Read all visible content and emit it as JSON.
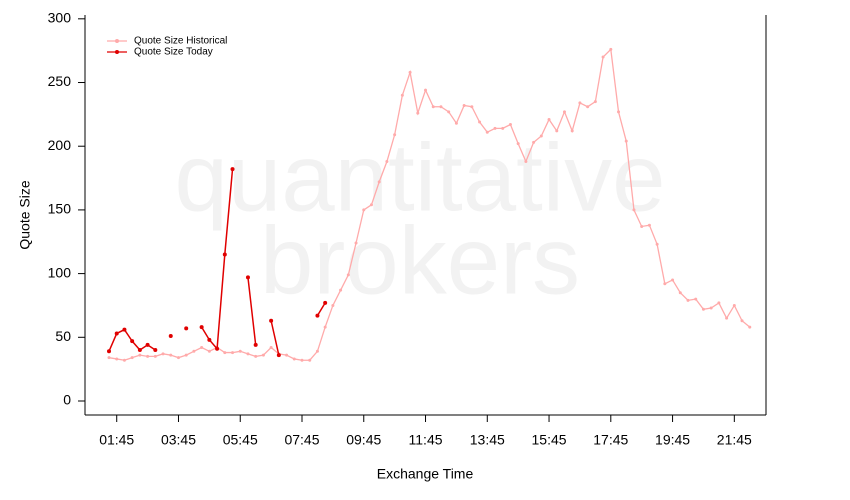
{
  "chart_data": {
    "type": "line",
    "watermark": [
      "quantitative",
      "brokers"
    ],
    "xlabel": "Exchange Time",
    "ylabel": "Quote Size",
    "categories": [
      null,
      "01:45",
      null,
      null,
      null,
      null,
      null,
      null,
      null,
      "03:45",
      null,
      null,
      null,
      null,
      null,
      null,
      null,
      "05:45",
      null,
      null,
      null,
      null,
      null,
      null,
      null,
      "07:45",
      null,
      null,
      null,
      null,
      null,
      null,
      null,
      "09:45",
      null,
      null,
      null,
      null,
      null,
      null,
      null,
      "11:45",
      null,
      null,
      null,
      null,
      null,
      null,
      null,
      "13:45",
      null,
      null,
      null,
      null,
      null,
      null,
      null,
      "15:45",
      null,
      null,
      null,
      null,
      null,
      null,
      null,
      "17:45",
      null,
      null,
      null,
      null,
      null,
      null,
      null,
      "19:45",
      null,
      null,
      null,
      null,
      null,
      null,
      null,
      "21:45",
      null,
      null
    ],
    "series": [
      {
        "name": "Quote Size Historical",
        "color": "#ffaaaa",
        "values": [
          34,
          33,
          32,
          34,
          36,
          35,
          35,
          37,
          36,
          34,
          36,
          39,
          42,
          39,
          42,
          38,
          38,
          39,
          37,
          35,
          36,
          42,
          37,
          36,
          33,
          32,
          32,
          39,
          58,
          75,
          87,
          99,
          124,
          150,
          154,
          172,
          188,
          209,
          240,
          258,
          226,
          244,
          231,
          231,
          227,
          218,
          232,
          231,
          219,
          211,
          214,
          214,
          217,
          202,
          188,
          203,
          208,
          221,
          212,
          227,
          212,
          234,
          231,
          235,
          270,
          276,
          227,
          204,
          150,
          137,
          138,
          123,
          92,
          95,
          85,
          79,
          80,
          72,
          73,
          77,
          65,
          75,
          63,
          58
        ]
      },
      {
        "name": "Quote Size Today",
        "color": "#e00000",
        "values": [
          39,
          53,
          56,
          47,
          40,
          44,
          40,
          null,
          51,
          null,
          57,
          null,
          58,
          48,
          41,
          115,
          182,
          null,
          97,
          44,
          null,
          63,
          36,
          null,
          null,
          null,
          null,
          67,
          77,
          null,
          null,
          null,
          null,
          null,
          null,
          null,
          null,
          null,
          null,
          null,
          null,
          null,
          null,
          null,
          null,
          null,
          null,
          null,
          null,
          null,
          null,
          null,
          null,
          null,
          null,
          null,
          null,
          null,
          null,
          null,
          null,
          null,
          null,
          null,
          null,
          null,
          null,
          null,
          null,
          null,
          null,
          null,
          null,
          null,
          null,
          null,
          null,
          null,
          null,
          null,
          null,
          null,
          null,
          null
        ]
      }
    ],
    "ylim": [
      -11,
      303
    ],
    "yticks": [
      0,
      50,
      100,
      150,
      200,
      250,
      300
    ],
    "legend": "upper left"
  }
}
